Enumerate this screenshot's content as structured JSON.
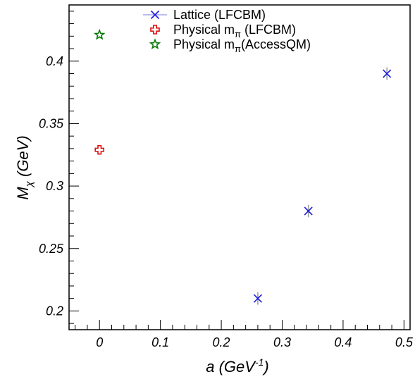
{
  "chart_data": {
    "type": "scatter",
    "xlabel": {
      "main": "a (GeV",
      "sup": "-1",
      "close": ")"
    },
    "ylabel": {
      "main": "M",
      "sub": "χ",
      "rest": " (GeV)"
    },
    "xlim": [
      -0.05,
      0.51
    ],
    "ylim": [
      0.185,
      0.445
    ],
    "x_ticks": [
      0,
      0.1,
      0.2,
      0.3,
      0.4,
      0.5
    ],
    "x_tick_labels": [
      "0",
      "0.1",
      "0.2",
      "0.3",
      "0.4",
      "0.5"
    ],
    "y_ticks": [
      0.2,
      0.25,
      0.3,
      0.35,
      0.4
    ],
    "y_tick_labels": [
      "0.2",
      "0.25",
      "0.3",
      "0.35",
      "0.4"
    ],
    "grid": false,
    "legend_position": "top",
    "series": [
      {
        "name": "Lattice (LFCBM)",
        "name_parts": [
          "Lattice (LFCBM)",
          "",
          ""
        ],
        "marker": "cross-x",
        "color": "#1a1adc",
        "points": [
          {
            "x": 0.26,
            "y": 0.21,
            "err": 0.005
          },
          {
            "x": 0.343,
            "y": 0.28,
            "err": 0.005
          },
          {
            "x": 0.472,
            "y": 0.39,
            "err": 0.005
          }
        ]
      },
      {
        "name": "Physical mπ (LFCBM)",
        "name_parts": [
          "Physical m",
          "π",
          " (LFCBM)"
        ],
        "marker": "open-plus",
        "color": "#e01010",
        "points": [
          {
            "x": 0,
            "y": 0.329
          }
        ]
      },
      {
        "name": "Physical mπ(AccessQM)",
        "name_parts": [
          "Physical m",
          "π",
          "(AccessQM)"
        ],
        "marker": "open-star",
        "color": "#0a7a0a",
        "points": [
          {
            "x": 0,
            "y": 0.421
          }
        ]
      }
    ]
  }
}
